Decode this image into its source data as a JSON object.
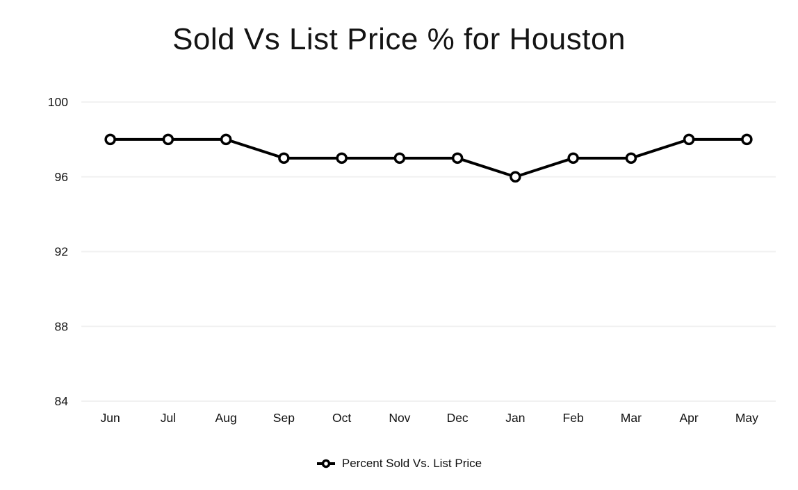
{
  "chart_data": {
    "type": "line",
    "title": "Sold Vs List Price % for Houston",
    "categories": [
      "Jun",
      "Jul",
      "Aug",
      "Sep",
      "Oct",
      "Nov",
      "Dec",
      "Jan",
      "Feb",
      "Mar",
      "Apr",
      "May"
    ],
    "series": [
      {
        "name": "Percent Sold Vs. List Price",
        "values": [
          98,
          98,
          98,
          97,
          97,
          97,
          97,
          96,
          97,
          97,
          98,
          98
        ]
      }
    ],
    "xlabel": "",
    "ylabel": "",
    "ylim": [
      84,
      100
    ],
    "yticks": [
      84,
      88,
      92,
      96,
      100
    ],
    "grid": "horizontal",
    "legend_position": "bottom",
    "colors": {
      "line": "#000000",
      "marker_fill": "#ffffff",
      "marker_stroke": "#000000",
      "gridline": "#f1f1f1",
      "tick_text": "#111111",
      "title_text": "#141414"
    }
  }
}
